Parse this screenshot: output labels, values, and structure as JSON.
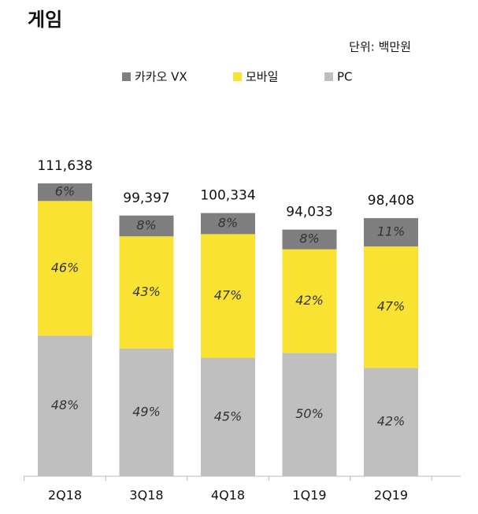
{
  "chart_data": {
    "type": "stacked-bar",
    "title": "게임",
    "unit_note": "단위: 백만원",
    "categories": [
      "2Q18",
      "3Q18",
      "4Q18",
      "1Q19",
      "2Q19"
    ],
    "totals": {
      "values": [
        111638,
        99397,
        100334,
        94033,
        98408
      ],
      "value_labels": [
        "111,638",
        "99,397",
        "100,334",
        "94,033",
        "98,408"
      ]
    },
    "series": [
      {
        "name": "카카오 VX",
        "color": "#7f7f7f",
        "values": [
          6,
          8,
          8,
          8,
          11
        ],
        "value_labels": [
          "6%",
          "8%",
          "8%",
          "8%",
          "11%"
        ]
      },
      {
        "name": "모바일",
        "color": "#f9e231",
        "values": [
          46,
          43,
          47,
          42,
          47
        ],
        "value_labels": [
          "46%",
          "43%",
          "47%",
          "42%",
          "47%"
        ]
      },
      {
        "name": "PC",
        "color": "#bfbfbf",
        "values": [
          48,
          49,
          45,
          50,
          42
        ],
        "value_labels": [
          "48%",
          "49%",
          "45%",
          "50%",
          "42%"
        ]
      }
    ]
  }
}
